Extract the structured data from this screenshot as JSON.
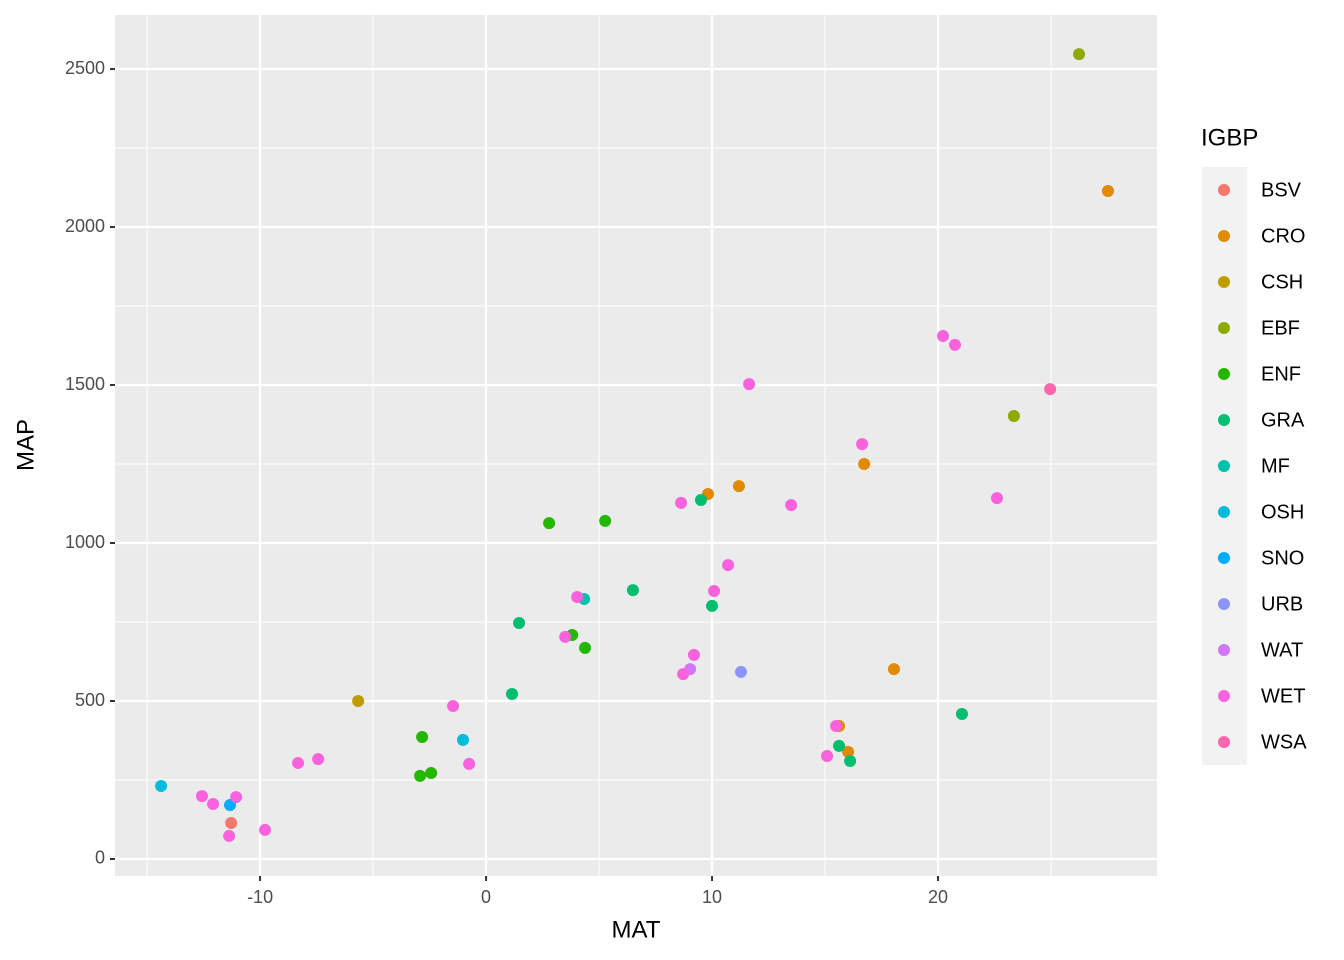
{
  "chart_data": {
    "type": "scatter",
    "x_label": "MAT",
    "y_label": "MAP",
    "legend_title": "IGBP",
    "legend_position": "right",
    "grid": true,
    "xlim": [
      -16.42,
      29.69
    ],
    "ylim": [
      -53.8,
      2671
    ],
    "xticks": [
      -10,
      0,
      10,
      20
    ],
    "yticks": [
      0,
      500,
      1000,
      1500,
      2000,
      2500
    ],
    "series": [
      {
        "name": "BSV",
        "color": "#F8766D",
        "x": [
          -11.28
        ],
        "values": [
          114
        ]
      },
      {
        "name": "CRO",
        "color": "#E18A00",
        "x": [
          27.52,
          9.82,
          11.19,
          16.73,
          18.05,
          15.62,
          16.02
        ],
        "values": [
          2114,
          1155,
          1180,
          1250,
          601,
          421,
          339
        ]
      },
      {
        "name": "CSH",
        "color": "#BE9C00",
        "x": [
          -5.66
        ],
        "values": [
          500
        ]
      },
      {
        "name": "EBF",
        "color": "#8CAB00",
        "x": [
          26.24,
          23.36
        ],
        "values": [
          2547,
          1402
        ]
      },
      {
        "name": "ENF",
        "color": "#24B700",
        "x": [
          2.79,
          5.27,
          3.81,
          4.38,
          -2.83,
          -2.43,
          -2.92
        ],
        "values": [
          1063,
          1070,
          709,
          668,
          386,
          272,
          263
        ]
      },
      {
        "name": "GRA",
        "color": "#00BE70",
        "x": [
          6.5,
          1.46,
          1.15,
          9.51,
          10.0,
          21.06,
          15.62,
          16.11
        ],
        "values": [
          851,
          747,
          522,
          1136,
          801,
          459,
          358,
          310
        ]
      },
      {
        "name": "MF",
        "color": "#00C1AB",
        "x": [
          4.34
        ],
        "values": [
          823
        ]
      },
      {
        "name": "OSH",
        "color": "#00BBDA",
        "x": [
          -14.38,
          -1.02
        ],
        "values": [
          231,
          377
        ]
      },
      {
        "name": "SNO",
        "color": "#00ACFC",
        "x": [
          -11.33
        ],
        "values": [
          171
        ]
      },
      {
        "name": "URB",
        "color": "#8B93FF",
        "x": [
          11.28
        ],
        "values": [
          592
        ]
      },
      {
        "name": "WAT",
        "color": "#D575FE",
        "x": [
          9.03
        ],
        "values": [
          601
        ]
      },
      {
        "name": "WET",
        "color": "#F962DD",
        "x": [
          11.64,
          20.22,
          20.75,
          16.64,
          22.61,
          13.5,
          8.63,
          10.71,
          10.09,
          4.03,
          3.5,
          9.2,
          8.72,
          -1.46,
          -0.75,
          -7.43,
          -8.32,
          -12.57,
          -12.08,
          -11.06,
          -11.37,
          -9.78,
          15.49,
          15.09
        ],
        "values": [
          1503,
          1655,
          1627,
          1313,
          1142,
          1120,
          1127,
          930,
          848,
          829,
          703,
          646,
          585,
          484,
          301,
          316,
          304,
          199,
          174,
          196,
          73,
          92,
          421,
          326
        ]
      },
      {
        "name": "WSA",
        "color": "#FF65AC",
        "x": [
          24.96
        ],
        "values": [
          1487
        ]
      }
    ]
  }
}
